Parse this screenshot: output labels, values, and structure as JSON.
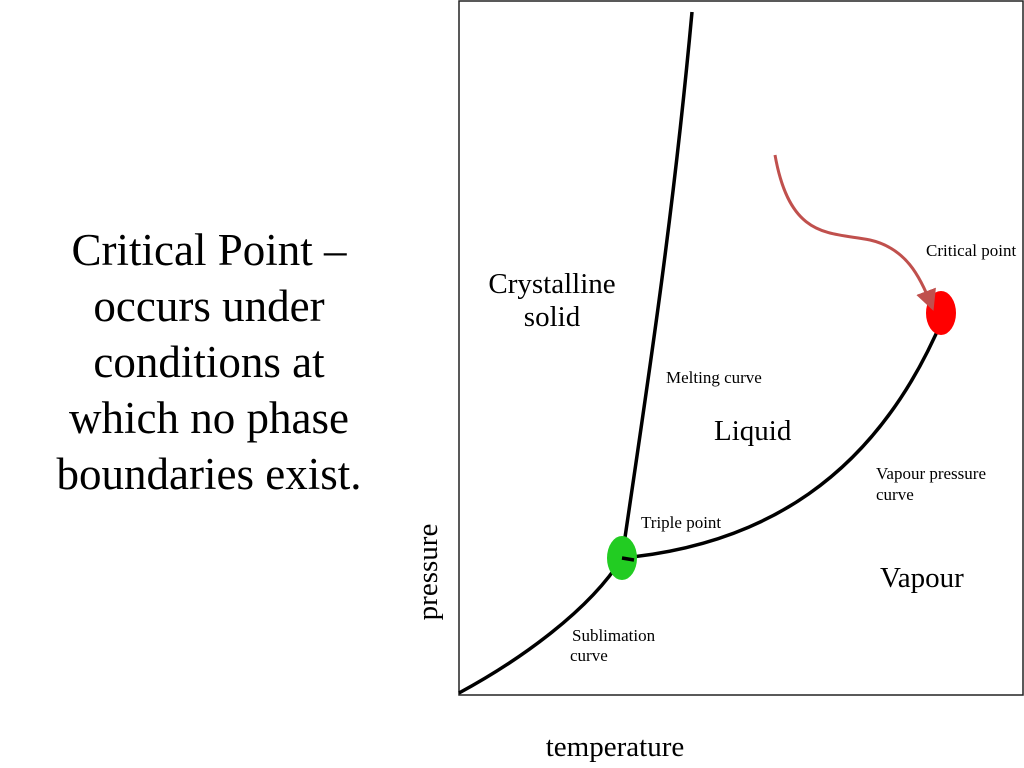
{
  "slide": {
    "text_lines": [
      "Critical Point –",
      "occurs under",
      "conditions at",
      "which no phase",
      "boundaries exist."
    ]
  },
  "diagram": {
    "axis_x_label": "temperature",
    "axis_y_label": "pressure",
    "regions": {
      "solid": [
        "Crystalline",
        "solid"
      ],
      "liquid": "Liquid",
      "vapour": "Vapour"
    },
    "curves": {
      "melting": "Melting curve",
      "vapour_pressure": [
        "Vapour pressure",
        "curve"
      ],
      "sublimation": [
        "Sublimation",
        "curve"
      ]
    },
    "points": {
      "triple": "Triple point",
      "critical": "Critical point"
    },
    "colors": {
      "triple_point": "#22cc22",
      "critical_point": "#ff0000",
      "arrow": "#c0504d",
      "curve": "#000000"
    }
  }
}
